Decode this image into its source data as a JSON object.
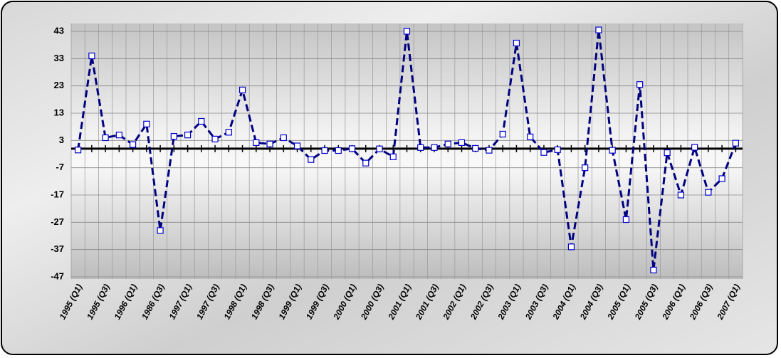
{
  "chart_data": {
    "type": "line",
    "categories": [
      "1995 (Q1)",
      null,
      "1995 (Q3)",
      null,
      "1996 (Q1)",
      null,
      "1986 (Q3)",
      null,
      "1997 (Q1)",
      null,
      "1997 (Q3)",
      null,
      "1998 (Q1)",
      null,
      "1998 (Q3)",
      null,
      "1999 (Q1)",
      null,
      "1999 (Q3)",
      null,
      "2000 (Q1)",
      null,
      "2000 (Q3)",
      null,
      "2001 (Q1)",
      null,
      "2001 (Q3)",
      null,
      "2002 (Q1)",
      null,
      "2002 (Q3)",
      null,
      "2003 (Q1)",
      null,
      "2003 (Q3)",
      null,
      "2004 (Q1)",
      null,
      "2004 (Q3)",
      null,
      "2005 (Q1)",
      null,
      "2005 (Q3)",
      null,
      "2006 (Q1)",
      null,
      "2006 (Q3)",
      null,
      "2007 (Q1)"
    ],
    "series": [
      {
        "color": "#000080",
        "values": [
          -0.5,
          34,
          4,
          5,
          1.5,
          9,
          -30,
          4.5,
          5,
          10,
          3.5,
          6,
          21.5,
          2.2,
          1.7,
          4,
          1,
          -4,
          -0.7,
          -0.7,
          0,
          -5.3,
          -0.1,
          -3,
          43,
          0.4,
          0.4,
          1.7,
          2.2,
          0.1,
          -0.6,
          5.3,
          38.7,
          4.3,
          -1.4,
          -0.4,
          -36,
          -7,
          43.5,
          -0.6,
          -26,
          23.5,
          -44.5,
          -1.5,
          -17,
          0.5,
          -16,
          -11,
          2
        ]
      }
    ],
    "ylim": [
      -47,
      43
    ],
    "yticks": [
      43,
      33,
      23,
      13,
      3,
      -7,
      -17,
      -27,
      -37,
      -47
    ],
    "grid": true
  }
}
